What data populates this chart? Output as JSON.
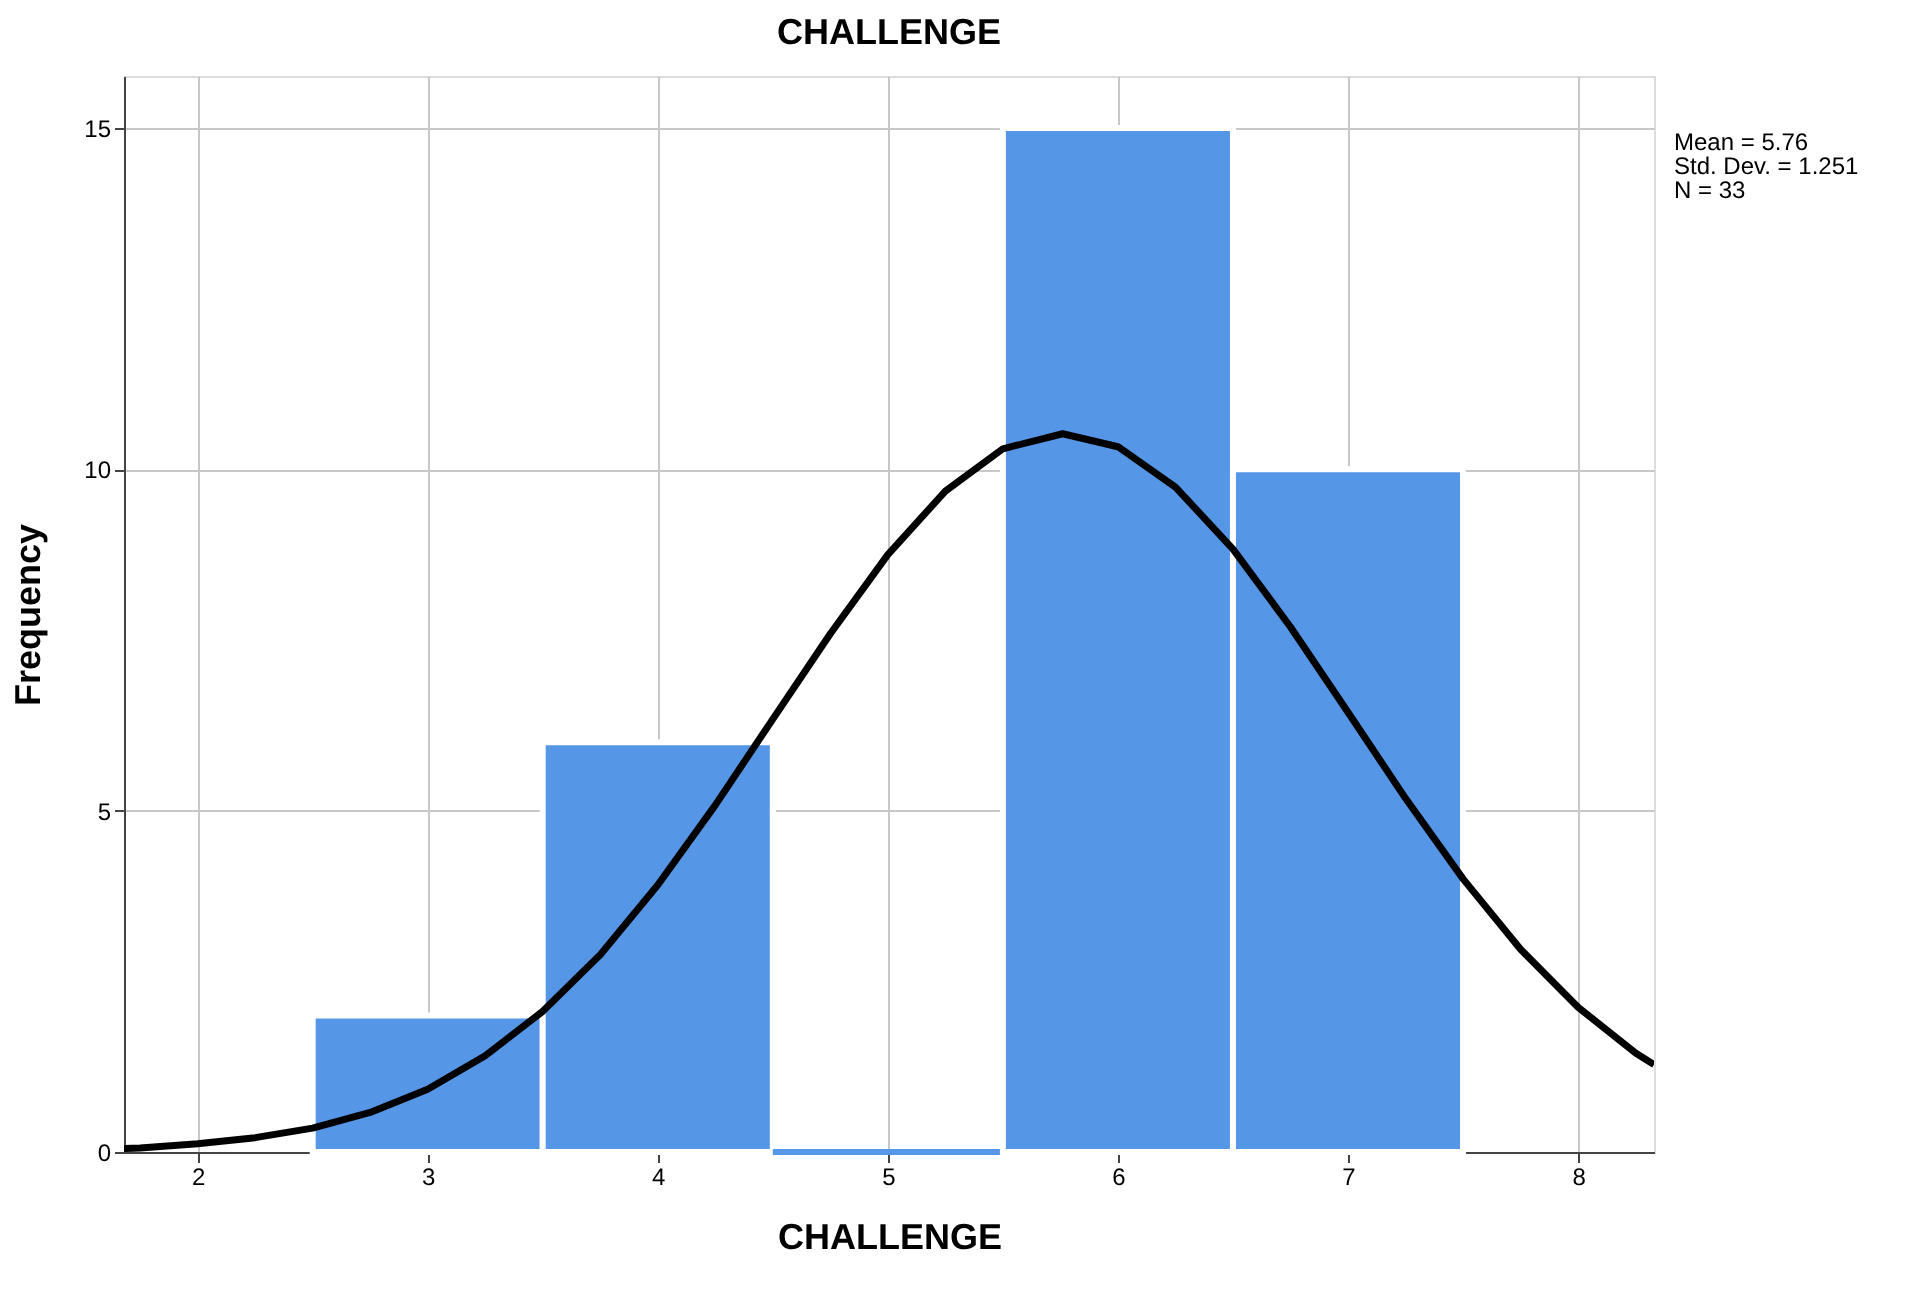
{
  "chart_data": {
    "type": "histogram",
    "title": "CHALLENGE",
    "xlabel": "CHALLENGE",
    "ylabel": "Frequency",
    "bins": [
      2.5,
      3.5,
      4.5,
      5.5,
      6.5,
      7.5
    ],
    "values": [
      2,
      6,
      0,
      15,
      10
    ],
    "color": "#5596e6",
    "series": [
      {
        "type": "line",
        "color": "#000000",
        "x": [
          1.68,
          1.75,
          2.0,
          2.25,
          2.5,
          2.75,
          3.0,
          3.25,
          3.5,
          3.75,
          4.0,
          4.25,
          4.5,
          4.75,
          5.0,
          5.25,
          5.5,
          5.76,
          6.0,
          6.25,
          6.5,
          6.75,
          7.0,
          7.25,
          7.5,
          7.75,
          8.0,
          8.25,
          8.33
        ],
        "values": [
          0.05,
          0.06,
          0.12,
          0.21,
          0.35,
          0.58,
          0.92,
          1.41,
          2.06,
          2.89,
          3.91,
          5.08,
          6.34,
          7.59,
          8.75,
          9.68,
          10.3,
          10.52,
          10.33,
          9.74,
          8.83,
          7.69,
          6.44,
          5.18,
          4.0,
          2.97,
          2.12,
          1.45,
          1.28
        ]
      }
    ],
    "xlim": [
      1.68,
      8.33
    ],
    "xticks": [
      2,
      3,
      4,
      5,
      6,
      7,
      8
    ],
    "ylim": [
      0,
      15.76
    ],
    "yticks": [
      0,
      5,
      10,
      15
    ],
    "grid": true,
    "legend": false,
    "annotations": [
      "Mean = 5.76",
      "Std. Dev. = 1.251",
      "N = 33"
    ]
  }
}
